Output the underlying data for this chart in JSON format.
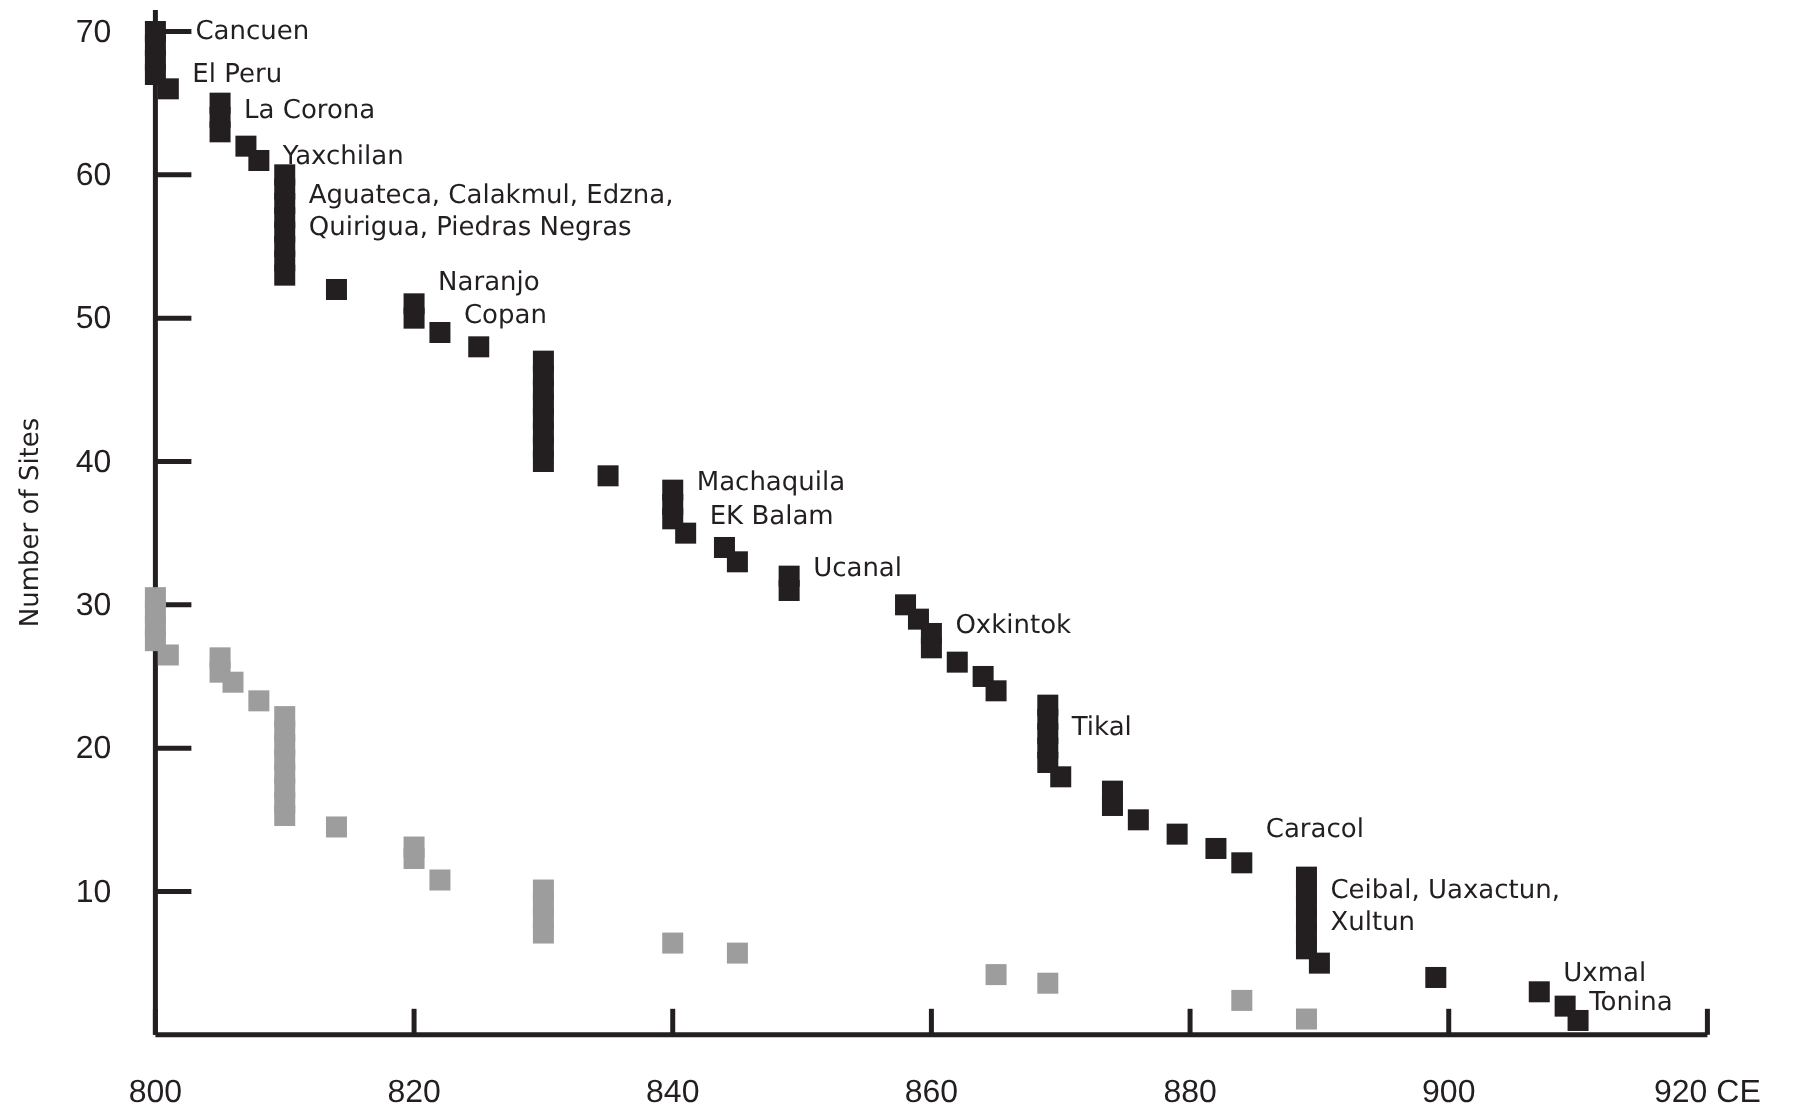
{
  "chart_data": {
    "type": "scatter",
    "ylabel": "Number of Sites",
    "marker": "square",
    "xlim": [
      800,
      920
    ],
    "xticks": [
      800,
      820,
      840,
      860,
      880,
      900,
      {
        "value": 920,
        "label": "920 CE"
      }
    ],
    "ylim": [
      0,
      71.5
    ],
    "yticks": [
      10,
      20,
      30,
      40,
      50,
      60,
      70
    ],
    "series": [
      {
        "color": "#231f20",
        "x": [
          800,
          800,
          800,
          800,
          801,
          805,
          805,
          805,
          807,
          808,
          810,
          810,
          810,
          810,
          810,
          810,
          810,
          810,
          814,
          820,
          820,
          822,
          825,
          830,
          830,
          830,
          830,
          830,
          830,
          830,
          830,
          835,
          840,
          840,
          840,
          841,
          844,
          845,
          849,
          849,
          858,
          859,
          860,
          860,
          862,
          864,
          865,
          869,
          869,
          869,
          869,
          869,
          870,
          874,
          874,
          876,
          879,
          882,
          884,
          889,
          889,
          889,
          889,
          889,
          889,
          890,
          899,
          907,
          909,
          910
        ],
        "values": [
          70,
          69,
          68,
          67,
          66,
          65,
          64,
          63,
          62,
          61,
          60,
          59,
          58,
          57,
          56,
          55,
          54,
          53,
          52,
          51,
          50,
          49,
          48,
          47,
          46,
          45,
          44,
          43,
          42,
          41,
          40,
          39,
          38,
          37,
          36,
          35,
          34,
          33,
          32,
          31,
          30,
          29,
          28,
          27,
          26,
          25,
          24,
          23,
          22,
          21,
          20,
          19,
          18,
          17,
          16,
          15,
          14,
          13,
          12,
          11,
          10,
          9,
          8,
          7,
          6,
          5,
          4,
          3,
          2,
          1
        ]
      },
      {
        "color": "#9d9d9d",
        "x": [
          800,
          800,
          800,
          800,
          801,
          805,
          805,
          806,
          808,
          810,
          810,
          810,
          810,
          810,
          810,
          810,
          810,
          814,
          820,
          820,
          822,
          830,
          830,
          830,
          830,
          840,
          845,
          865,
          869,
          884,
          889
        ],
        "values": [
          30.5,
          29.5,
          28.5,
          27.5,
          26.5,
          26.3,
          25.3,
          24.6,
          23.3,
          22.2,
          21.2,
          20.2,
          19.2,
          18.2,
          17.2,
          16.2,
          15.3,
          14.5,
          13.1,
          12.3,
          10.8,
          10.1,
          9.1,
          8.1,
          7.1,
          6.4,
          5.7,
          4.2,
          3.6,
          2.4,
          1.1
        ]
      }
    ],
    "annotations": [
      {
        "text": "Cancuen",
        "x": 800,
        "y": 70
      },
      {
        "text": "El Peru",
        "x": 801,
        "y": 67
      },
      {
        "text": "La Corona",
        "x": 805,
        "y": 64.5
      },
      {
        "text": "Yaxchilan",
        "x": 808,
        "y": 61.3
      },
      {
        "text": "Aguateca, Calakmul, Edzna,\nQuirigua, Piedras Negras",
        "x": 810,
        "y": 57.5
      },
      {
        "text": "Naranjo",
        "x": 820,
        "y": 51
      },
      {
        "text": "Copan",
        "x": 822,
        "y": 50.2
      },
      {
        "text": "Machaquila",
        "x": 840,
        "y": 38.6
      },
      {
        "text": "EK Balam",
        "x": 841,
        "y": 36.2
      },
      {
        "text": "Ucanal",
        "x": 849,
        "y": 32.6
      },
      {
        "text": "Oxkintok",
        "x": 860,
        "y": 28.6
      },
      {
        "text": "Tikal",
        "x": 869,
        "y": 21.5
      },
      {
        "text": "Caracol",
        "x": 884,
        "y": 12
      },
      {
        "text": "Ceibal, Uaxactun,\nXultun",
        "x": 889,
        "y": 9
      },
      {
        "text": "Uxmal",
        "x": 907,
        "y": 4.3
      },
      {
        "text": "Tonina",
        "x": 909,
        "y": 2.3
      }
    ]
  }
}
